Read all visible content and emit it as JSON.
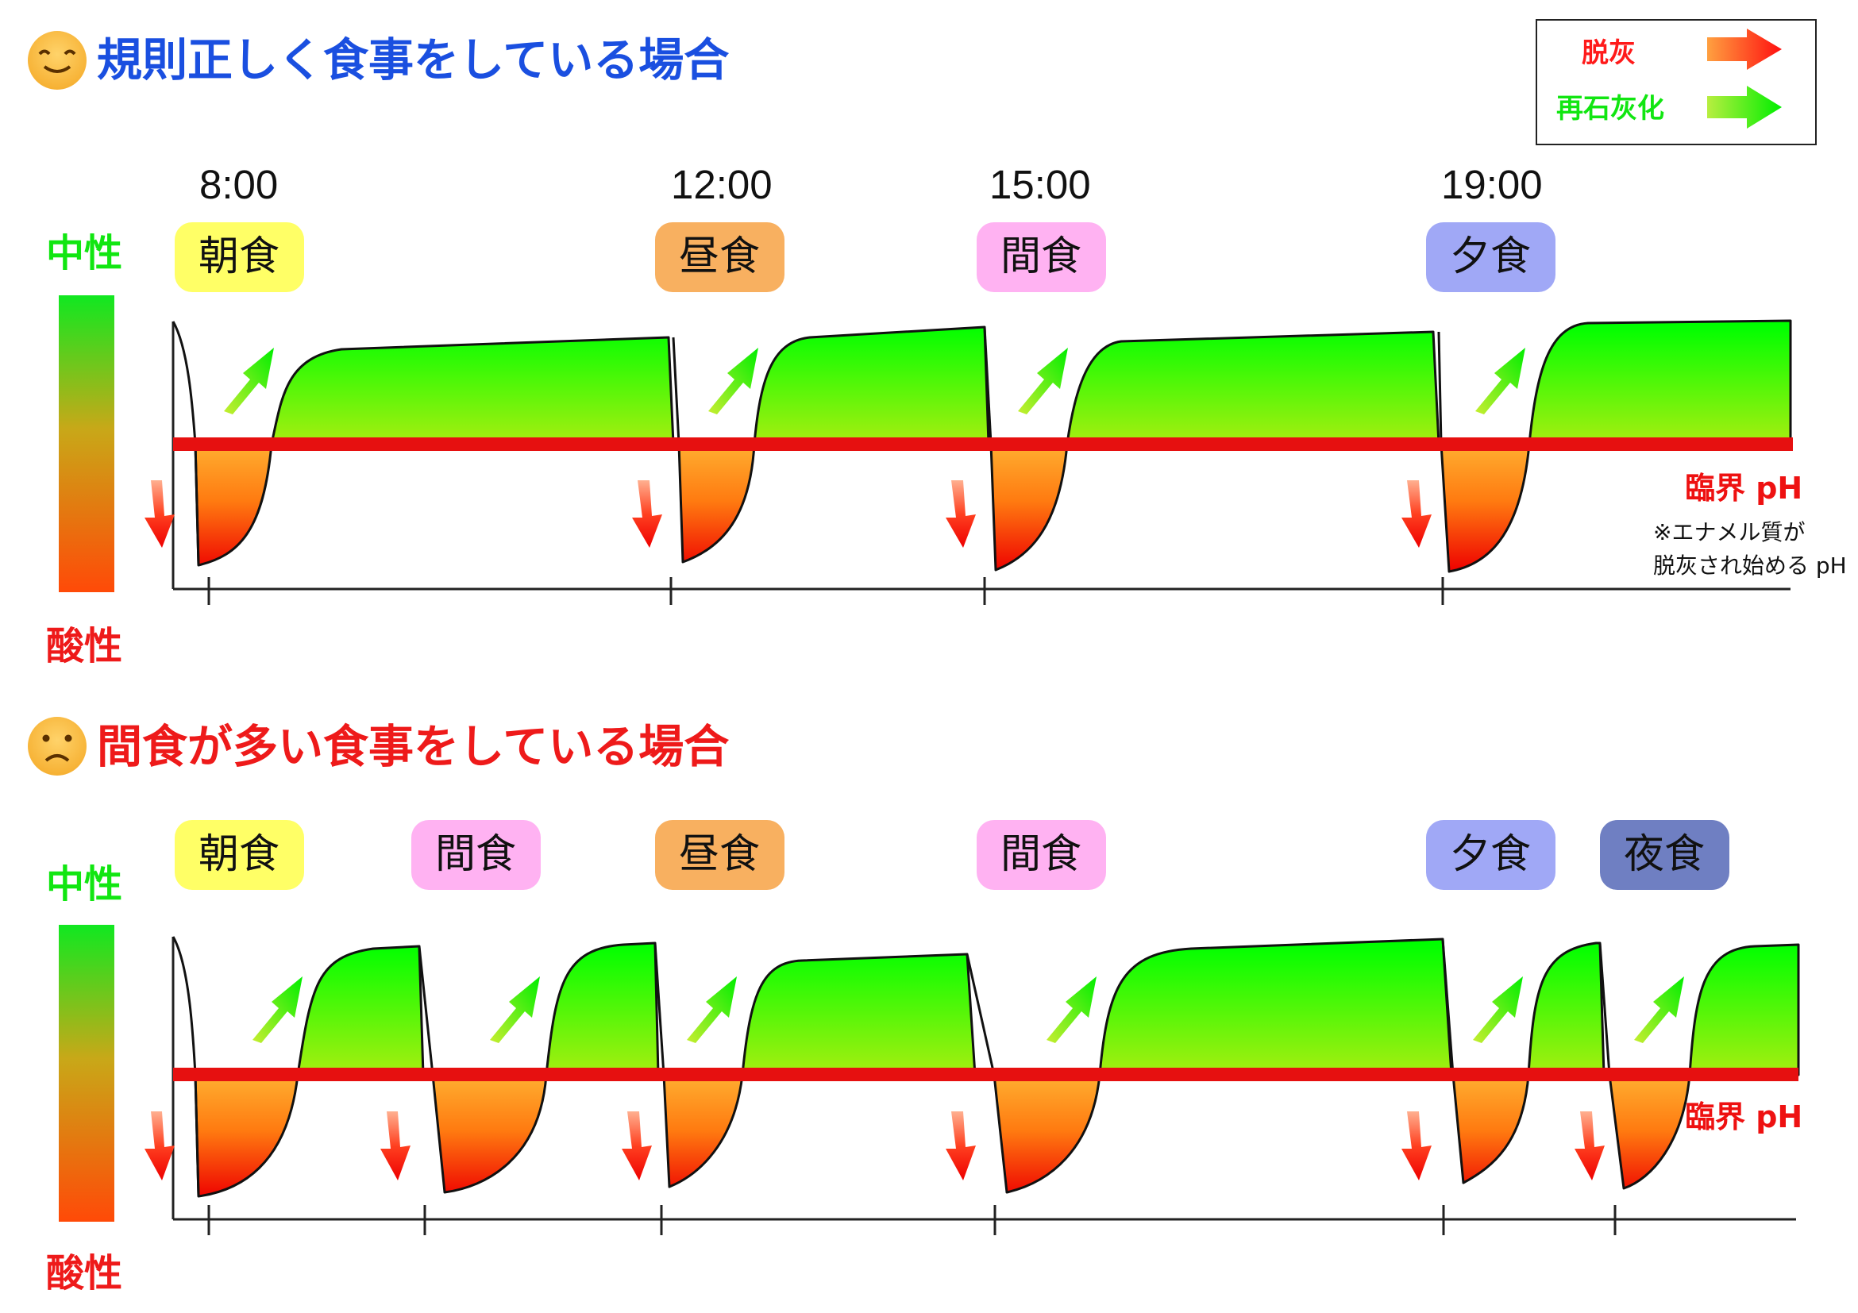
{
  "legend": {
    "demineralization": "脱灰",
    "remineralization": "再石灰化"
  },
  "side_labels": {
    "neutral": "中性",
    "acidic": "酸性"
  },
  "critical_ph": "臨界 pH",
  "critical_note": [
    "※エナメル質が",
    "脱灰され始める pH"
  ],
  "colors": {
    "demin": "#ff1a1a",
    "remin": "#11ee11",
    "title_good": "#1a4fe0",
    "title_bad": "#ee1a1a",
    "critical_line": "#e61010"
  },
  "charts": [
    {
      "title": "規則正しく食事をしている場合",
      "face": "smile",
      "times": [
        "8:00",
        "12:00",
        "15:00",
        "19:00"
      ],
      "meals": [
        {
          "label": "朝食",
          "color": "#ffff66"
        },
        {
          "label": "昼食",
          "color": "#f8b060"
        },
        {
          "label": "間食",
          "color": "#ffb2f2"
        },
        {
          "label": "夕食",
          "color": "#a0a8f6"
        }
      ]
    },
    {
      "title": "間食が多い食事をしている場合",
      "face": "frown",
      "times": [],
      "meals": [
        {
          "label": "朝食",
          "color": "#ffff66"
        },
        {
          "label": "間食",
          "color": "#ffb2f2"
        },
        {
          "label": "昼食",
          "color": "#f8b060"
        },
        {
          "label": "間食",
          "color": "#ffb2f2"
        },
        {
          "label": "夕食",
          "color": "#a0a8f6"
        },
        {
          "label": "夜食",
          "color": "#6f7fc2"
        }
      ]
    }
  ]
}
